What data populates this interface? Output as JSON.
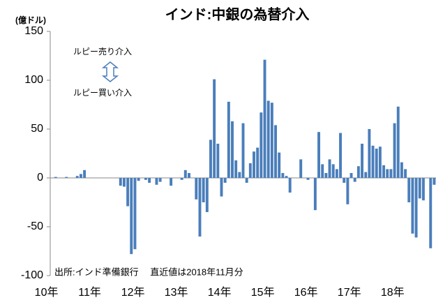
{
  "chart_data": {
    "type": "bar",
    "title": "インド:中銀の為替介入",
    "y_unit": "(億ドル)",
    "annotations": [
      "ルピー売り介入",
      "ルピー買い介入",
      "出所:インド準備銀行　 直近値は2018年11月分"
    ],
    "categories": [
      "10年",
      null,
      null,
      null,
      null,
      null,
      null,
      null,
      null,
      null,
      null,
      null,
      "11年",
      null,
      null,
      null,
      null,
      null,
      null,
      null,
      null,
      null,
      null,
      null,
      "12年",
      null,
      null,
      null,
      null,
      null,
      null,
      null,
      null,
      null,
      null,
      null,
      "13年",
      null,
      null,
      null,
      null,
      null,
      null,
      null,
      null,
      null,
      null,
      null,
      "14年",
      null,
      null,
      null,
      null,
      null,
      null,
      null,
      null,
      null,
      null,
      null,
      "15年",
      null,
      null,
      null,
      null,
      null,
      null,
      null,
      null,
      null,
      null,
      null,
      "16年",
      null,
      null,
      null,
      null,
      null,
      null,
      null,
      null,
      null,
      null,
      null,
      "17年",
      null,
      null,
      null,
      null,
      null,
      null,
      null,
      null,
      null,
      null,
      null,
      "18年",
      null,
      null,
      null,
      null,
      null,
      null,
      null,
      null,
      null,
      null
    ],
    "values": [
      0,
      1,
      0,
      0,
      1,
      0,
      0,
      2,
      4,
      8,
      0,
      0,
      0,
      0,
      0,
      0,
      0,
      0,
      0,
      -8,
      -9,
      -29,
      -78,
      -73,
      -3,
      0,
      -2,
      -5,
      0,
      -7,
      -4,
      0,
      0,
      -8,
      0,
      0,
      -2,
      8,
      5,
      0,
      -22,
      -60,
      -25,
      -35,
      39,
      101,
      35,
      -19,
      -5,
      78,
      58,
      18,
      6,
      56,
      -5,
      15,
      27,
      31,
      67,
      121,
      79,
      77,
      54,
      26,
      5,
      2,
      -15,
      0,
      0,
      19,
      0,
      -2,
      0,
      -33,
      47,
      14,
      5,
      19,
      14,
      9,
      46,
      -5,
      -27,
      5,
      -4,
      12,
      35,
      6,
      50,
      33,
      30,
      32,
      13,
      9,
      9,
      56,
      73,
      16,
      9,
      -25,
      -57,
      -61,
      -21,
      -23,
      0,
      -72,
      -7
    ],
    "color": "#4a7ebb",
    "ylim": [
      -100,
      150
    ],
    "yticks": [
      -100,
      -50,
      0,
      50,
      100,
      150
    ],
    "grid": false
  }
}
